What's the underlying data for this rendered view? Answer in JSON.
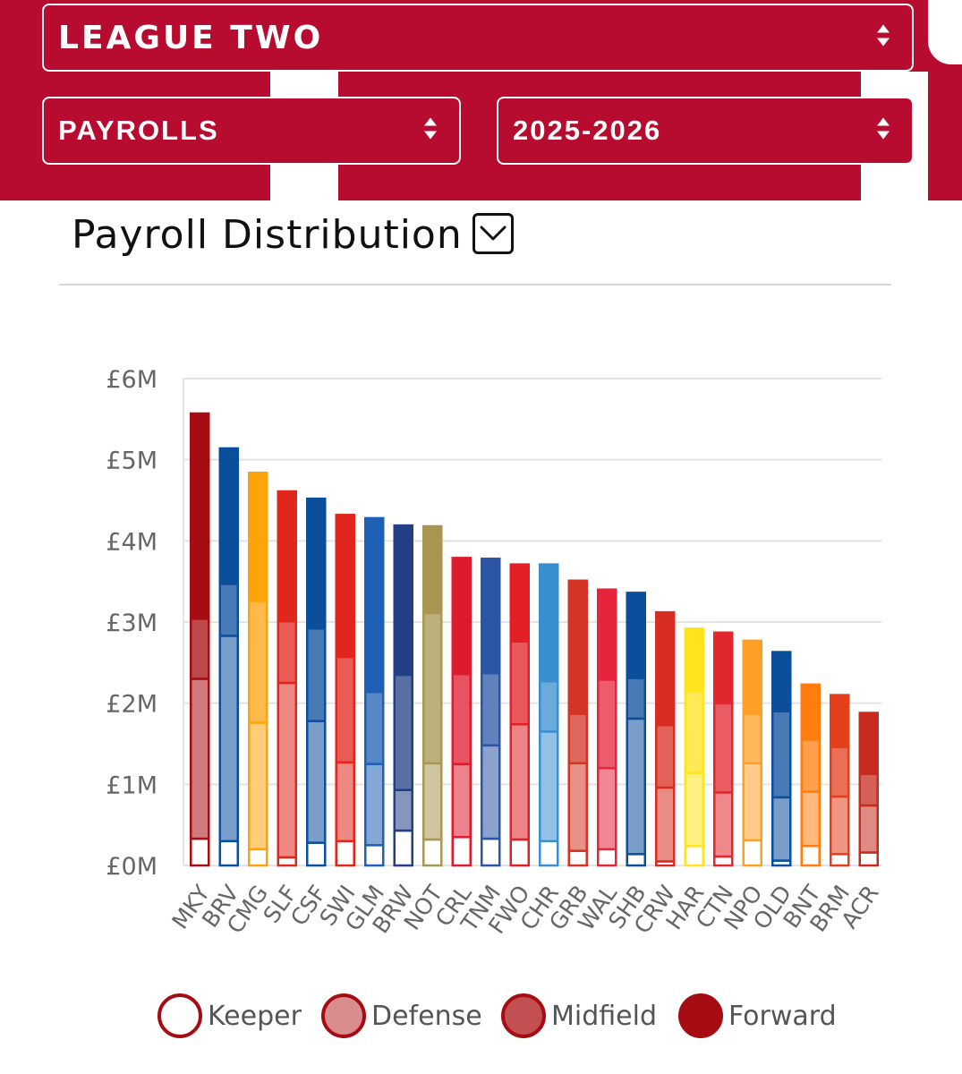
{
  "header": {
    "league_select": {
      "value": "LEAGUE TWO"
    },
    "metric_select": {
      "value": "PAYROLLS"
    },
    "season_select": {
      "value": "2025-2026"
    }
  },
  "colors": {
    "brand": "#b70c2f",
    "text_on_brand": "#ffffff"
  },
  "section": {
    "title": "Payroll Distribution",
    "toggle_icon": "chevron-down-icon"
  },
  "chart_data": {
    "type": "bar",
    "stacked": true,
    "title": "Payroll Distribution",
    "ylabel": "",
    "xlabel": "",
    "ylim": [
      0,
      6
    ],
    "yticks": [
      {
        "value": 0,
        "label": "£0M"
      },
      {
        "value": 1,
        "label": "£1M"
      },
      {
        "value": 2,
        "label": "£2M"
      },
      {
        "value": 3,
        "label": "£3M"
      },
      {
        "value": 4,
        "label": "£4M"
      },
      {
        "value": 5,
        "label": "£5M"
      },
      {
        "value": 6,
        "label": "£6M"
      }
    ],
    "grid": true,
    "legend_position": "bottom",
    "series_names": [
      "Keeper",
      "Defense",
      "Midfield",
      "Forward"
    ],
    "teams": [
      {
        "code": "MKY",
        "color": "#a50d12",
        "values": [
          0.33,
          1.97,
          0.74,
          2.53
        ]
      },
      {
        "code": "BRV",
        "color": "#0b4f9c",
        "values": [
          0.3,
          2.53,
          0.64,
          1.67
        ]
      },
      {
        "code": "CMG",
        "color": "#ffa30d",
        "values": [
          0.2,
          1.56,
          1.5,
          1.58
        ]
      },
      {
        "code": "SLF",
        "color": "#e1261c",
        "values": [
          0.1,
          2.15,
          0.76,
          1.6
        ]
      },
      {
        "code": "CSF",
        "color": "#0b4f9c",
        "values": [
          0.28,
          1.5,
          1.14,
          1.6
        ]
      },
      {
        "code": "SWI",
        "color": "#e1261c",
        "values": [
          0.3,
          0.97,
          1.3,
          1.75
        ]
      },
      {
        "code": "GLM",
        "color": "#1e60b5",
        "values": [
          0.25,
          1.0,
          0.89,
          2.14
        ]
      },
      {
        "code": "BRW",
        "color": "#233f85",
        "values": [
          0.43,
          0.5,
          1.42,
          1.84
        ]
      },
      {
        "code": "NOT",
        "color": "#a89652",
        "values": [
          0.32,
          0.94,
          1.85,
          1.07
        ]
      },
      {
        "code": "CRL",
        "color": "#dd1b2e",
        "values": [
          0.35,
          0.9,
          1.11,
          1.43
        ]
      },
      {
        "code": "TNM",
        "color": "#2c55a6",
        "values": [
          0.33,
          1.15,
          0.89,
          1.41
        ]
      },
      {
        "code": "FWO",
        "color": "#e21f26",
        "values": [
          0.32,
          1.42,
          1.02,
          0.95
        ]
      },
      {
        "code": "CHR",
        "color": "#3a8fd0",
        "values": [
          0.3,
          1.35,
          0.62,
          1.44
        ]
      },
      {
        "code": "GRB",
        "color": "#d23526",
        "values": [
          0.18,
          1.08,
          0.61,
          1.64
        ]
      },
      {
        "code": "WAL",
        "color": "#e5253c",
        "values": [
          0.2,
          1.0,
          1.09,
          1.11
        ]
      },
      {
        "code": "SHB",
        "color": "#0b4f9c",
        "values": [
          0.14,
          1.67,
          0.5,
          1.05
        ]
      },
      {
        "code": "CRW",
        "color": "#d82d22",
        "values": [
          0.05,
          0.91,
          0.77,
          1.39
        ]
      },
      {
        "code": "HAR",
        "color": "#ffe31c",
        "values": [
          0.24,
          0.9,
          1.01,
          0.77
        ]
      },
      {
        "code": "CTN",
        "color": "#e1262e",
        "values": [
          0.11,
          0.79,
          1.1,
          0.87
        ]
      },
      {
        "code": "NPO",
        "color": "#ff9f26",
        "values": [
          0.31,
          0.95,
          0.61,
          0.9
        ]
      },
      {
        "code": "OLD",
        "color": "#0b4f9c",
        "values": [
          0.06,
          0.78,
          1.06,
          0.73
        ]
      },
      {
        "code": "BNT",
        "color": "#ff7d0f",
        "values": [
          0.24,
          0.67,
          0.64,
          0.68
        ]
      },
      {
        "code": "BRM",
        "color": "#e43f1c",
        "values": [
          0.14,
          0.71,
          0.61,
          0.64
        ]
      },
      {
        "code": "ACR",
        "color": "#c72b1f",
        "values": [
          0.16,
          0.58,
          0.39,
          0.75
        ]
      }
    ]
  },
  "legend": {
    "items": [
      {
        "label": "Keeper"
      },
      {
        "label": "Defense"
      },
      {
        "label": "Midfield"
      },
      {
        "label": "Forward"
      }
    ]
  }
}
